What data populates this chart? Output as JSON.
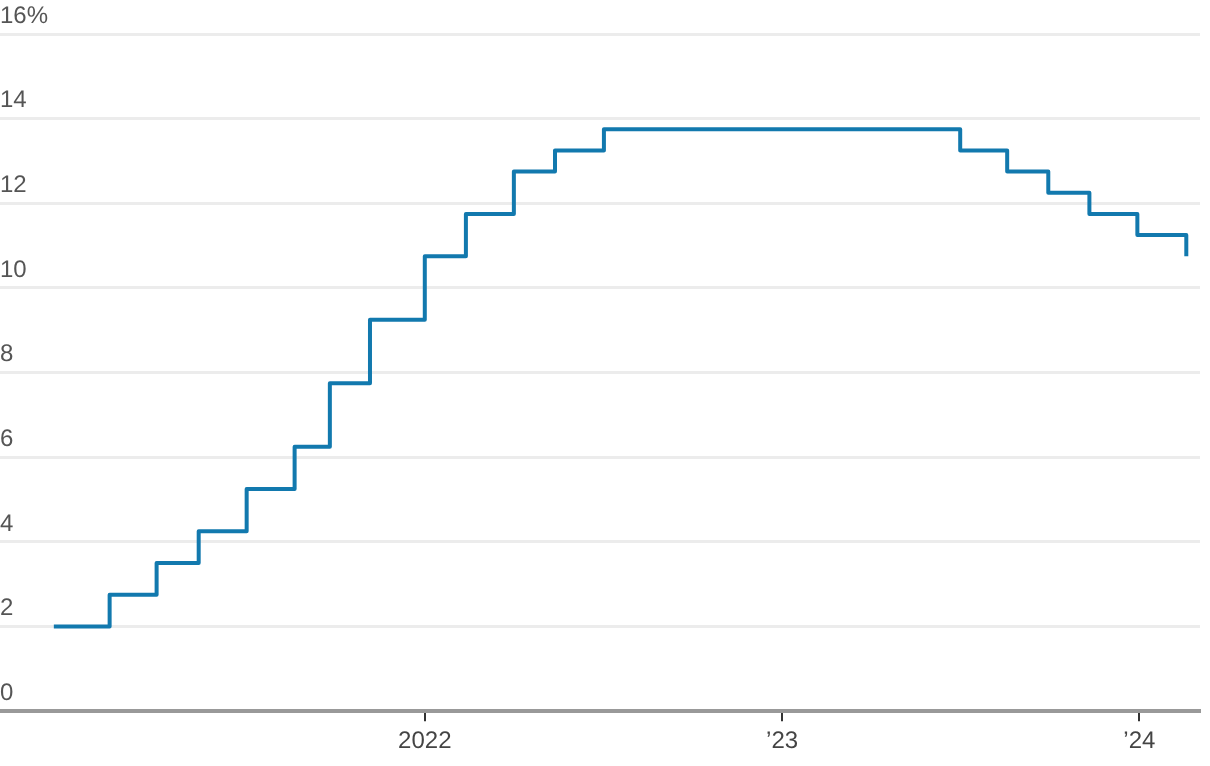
{
  "chart_data": {
    "type": "step",
    "x": [
      "2020-12-18",
      "2021-02-13",
      "2021-04-02",
      "2021-05-15",
      "2021-07-03",
      "2021-08-21",
      "2021-09-26",
      "2021-11-06",
      "2022-01-01",
      "2022-02-12",
      "2022-04-02",
      "2022-05-14",
      "2022-07-03",
      "2023-07-02",
      "2023-08-19",
      "2023-09-30",
      "2023-11-11",
      "2023-12-30",
      "2024-02-18"
    ],
    "values": [
      2,
      2.75,
      3.5,
      4.25,
      5.25,
      6.25,
      7.75,
      9.25,
      10.75,
      11.75,
      12.75,
      13.25,
      13.75,
      13.25,
      12.75,
      12.25,
      11.75,
      11.25,
      10.75
    ],
    "color": "#1279ae",
    "xlim": [
      "2020-10-24",
      "2024-03-03"
    ],
    "xticks": [
      {
        "value": "2022",
        "label": "2022"
      },
      {
        "value": "2023",
        "label": "’23"
      },
      {
        "value": "2024",
        "label": "’24"
      }
    ],
    "ylim": [
      0,
      16
    ],
    "yticks": [
      0,
      2,
      4,
      6,
      8,
      10,
      12,
      14,
      {
        "value": 16,
        "label": "16%"
      }
    ],
    "grid": "y",
    "legend": false,
    "marker": "none",
    "line_style": "solid"
  }
}
